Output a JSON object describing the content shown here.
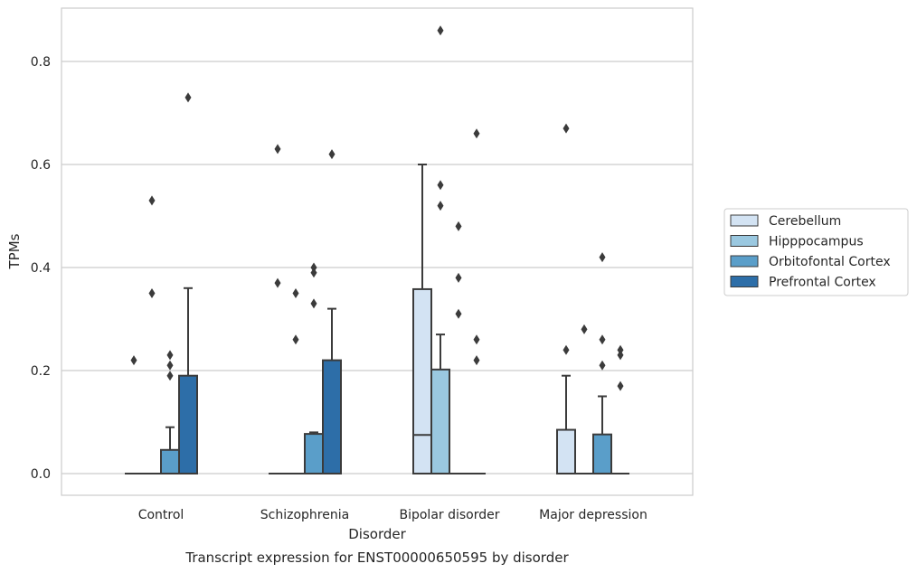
{
  "chart_data": {
    "type": "box",
    "title": "Transcript expression for ENST00000650595 by disorder",
    "xlabel": "Disorder",
    "ylabel": "TPMs",
    "ylim": [
      -0.04,
      0.905
    ],
    "yticks": [
      "0.0",
      "0.2",
      "0.4",
      "0.6",
      "0.8"
    ],
    "grid": true,
    "legend_position": "right",
    "categories": [
      "Control",
      "Schizophrenia",
      "Bipolar disorder",
      "Major depression"
    ],
    "series": [
      {
        "name": "Cerebellum",
        "color": "#d3e3f3",
        "boxes": [
          {
            "q1": 0,
            "median": 0,
            "q3": 0,
            "whislo": 0,
            "whishi": 0,
            "fliers": [
              0.22
            ]
          },
          {
            "q1": 0,
            "median": 0,
            "q3": 0,
            "whislo": 0,
            "whishi": 0,
            "fliers": [
              0.37,
              0.63
            ]
          },
          {
            "q1": 0,
            "median": 0.075,
            "q3": 0.358,
            "whislo": 0,
            "whishi": 0.6,
            "fliers": []
          },
          {
            "q1": 0,
            "median": 0,
            "q3": 0.085,
            "whislo": 0,
            "whishi": 0.19,
            "fliers": [
              0.24,
              0.67
            ]
          }
        ]
      },
      {
        "name": "Hipppocampus",
        "color": "#9ac8e0",
        "boxes": [
          {
            "q1": 0,
            "median": 0,
            "q3": 0,
            "whislo": 0,
            "whishi": 0,
            "fliers": [
              0.35,
              0.53
            ]
          },
          {
            "q1": 0,
            "median": 0,
            "q3": 0,
            "whislo": 0,
            "whishi": 0,
            "fliers": [
              0.26,
              0.35
            ]
          },
          {
            "q1": 0,
            "median": 0,
            "q3": 0.202,
            "whislo": 0,
            "whishi": 0.27,
            "fliers": [
              0.52,
              0.56,
              0.86
            ]
          },
          {
            "q1": 0,
            "median": 0,
            "q3": 0,
            "whislo": 0,
            "whishi": 0,
            "fliers": [
              0.28
            ]
          }
        ]
      },
      {
        "name": "Orbitofontal Cortex",
        "color": "#5a9ec9",
        "boxes": [
          {
            "q1": 0,
            "median": 0,
            "q3": 0.046,
            "whislo": 0,
            "whishi": 0.09,
            "fliers": [
              0.19,
              0.21,
              0.23
            ]
          },
          {
            "q1": 0,
            "median": 0,
            "q3": 0.077,
            "whislo": 0,
            "whishi": 0.08,
            "fliers": [
              0.33,
              0.39,
              0.4
            ]
          },
          {
            "q1": 0,
            "median": 0,
            "q3": 0,
            "whislo": 0,
            "whishi": 0,
            "fliers": [
              0.31,
              0.38,
              0.48
            ]
          },
          {
            "q1": 0,
            "median": 0,
            "q3": 0.076,
            "whislo": 0,
            "whishi": 0.15,
            "fliers": [
              0.21,
              0.26,
              0.42
            ]
          }
        ]
      },
      {
        "name": "Prefrontal Cortex",
        "color": "#2d6ea8",
        "boxes": [
          {
            "q1": 0,
            "median": 0,
            "q3": 0.19,
            "whislo": 0,
            "whishi": 0.36,
            "fliers": [
              0.73
            ]
          },
          {
            "q1": 0,
            "median": 0,
            "q3": 0.22,
            "whislo": 0,
            "whishi": 0.32,
            "fliers": [
              0.62
            ]
          },
          {
            "q1": 0,
            "median": 0,
            "q3": 0,
            "whislo": 0,
            "whishi": 0,
            "fliers": [
              0.22,
              0.26,
              0.66
            ]
          },
          {
            "q1": 0,
            "median": 0,
            "q3": 0,
            "whislo": 0,
            "whishi": 0,
            "fliers": [
              0.17,
              0.23,
              0.24
            ]
          }
        ]
      }
    ]
  }
}
